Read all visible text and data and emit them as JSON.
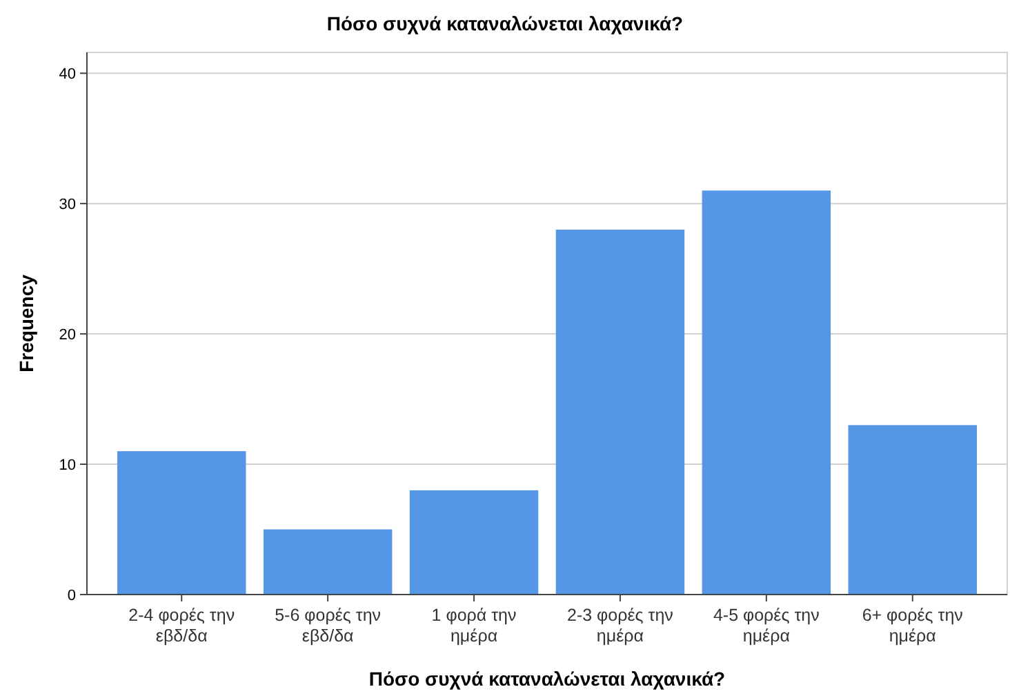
{
  "chart_data": {
    "type": "bar",
    "title": "Πόσο συχνά καταναλώνεται λαχανικά?",
    "xlabel": "Πόσο συχνά καταναλώνεται λαχανικά?",
    "ylabel": "Frequency",
    "categories": [
      "2-4 φορές την εβδ/δα",
      "5-6 φορές την εβδ/δα",
      "1 φορά την ημέρα",
      "2-3 φορές την ημέρα",
      "4-5 φορές την ημέρα",
      "6+ φορές την ημέρα"
    ],
    "values": [
      11,
      5,
      8,
      28,
      31,
      13
    ],
    "color": "#5596e6",
    "ylim": [
      0,
      41.6
    ],
    "yticks": [
      0,
      10,
      20,
      30,
      40
    ],
    "grid": "y"
  }
}
